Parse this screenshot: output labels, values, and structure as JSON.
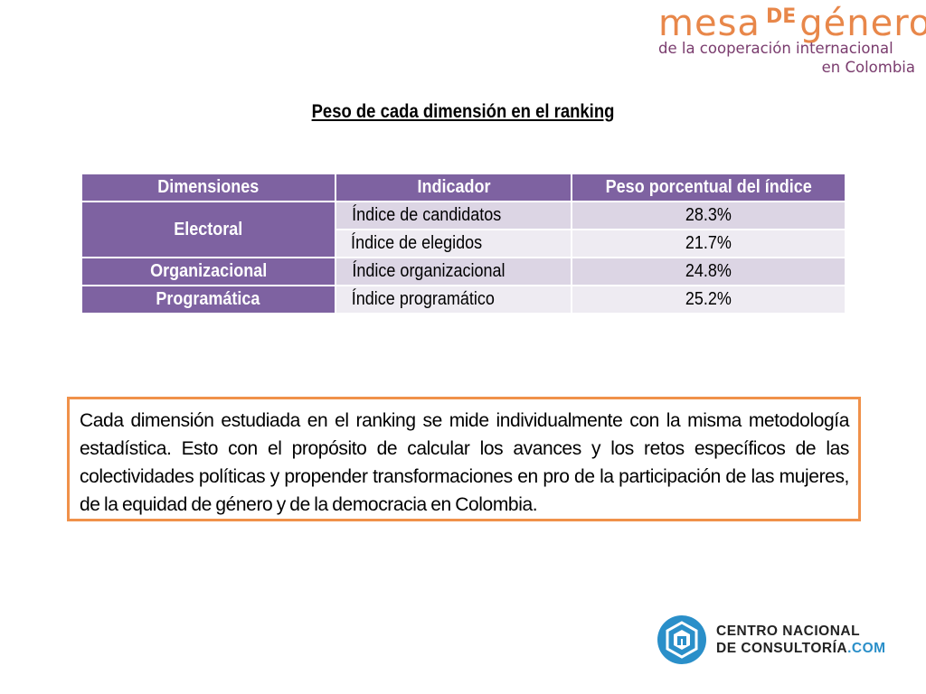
{
  "logo_top": {
    "word_mesa": "mesa",
    "word_de": "DE",
    "word_genero": "género",
    "line2": "de la cooperación internacional",
    "line3": "en Colombia",
    "color_primary": "#e8874a",
    "color_secondary": "#7a3c6e"
  },
  "title": "Peso de cada dimensión en el ranking",
  "table": {
    "headers": [
      "Dimensiones",
      "Indicador",
      "Peso porcentual del índice"
    ],
    "rows": [
      {
        "dimension": "Electoral",
        "indicator": "Índice de candidatos",
        "weight": "28.3%"
      },
      {
        "dimension": "",
        "indicator": "Índice de elegidos",
        "weight": "21.7%"
      },
      {
        "dimension": "Organizacional",
        "indicator": "Índice organizacional",
        "weight": "24.8%"
      },
      {
        "dimension": "Programática",
        "indicator": "Índice programático",
        "weight": "25.2%"
      }
    ],
    "header_color": "#7e62a1",
    "row_dark_color": "#dcd5e4",
    "row_light_color": "#eeebf2"
  },
  "note": {
    "text": "Cada dimensión estudiada en el ranking se mide individualmente con la misma metodología estadística. Esto con el propósito de calcular los avances y los retos específicos de las colectividades políticas y propender transformaciones en pro de la participación de las mujeres, de la equidad de género y de la democracia en Colombia.",
    "border_color": "#f0914a"
  },
  "logo_bottom": {
    "line1": "CENTRO NACIONAL",
    "line2_main": "DE CONSULTORÍA",
    "line2_suffix": ".COM",
    "accent_color": "#2a8fc9",
    "icon": "cnc-hexagon-logo-icon"
  }
}
